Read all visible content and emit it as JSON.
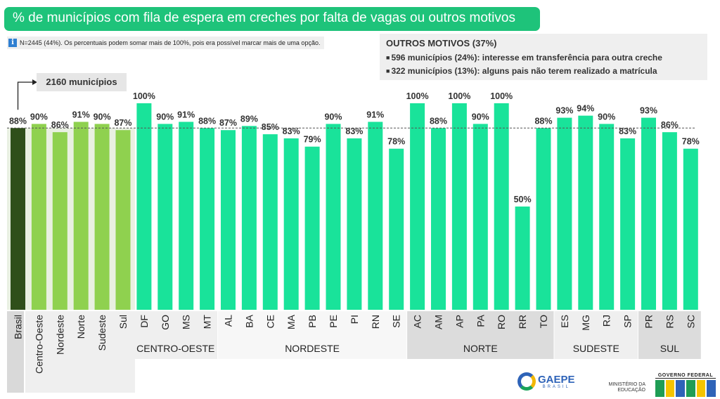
{
  "title": "% de municípios com fila de espera em creches por falta de vagas ou outros motivos",
  "note": "N=2445 (44%). Os percentuais podem somar mais de 100%, pois era possível marcar mais de uma opção.",
  "other_reasons": {
    "title": "OUTROS MOTIVOS (37%)",
    "items": [
      "596 municípios (24%): interesse em transferência para outra creche",
      "322 municípios (13%): alguns pais não terem realizado a matrícula"
    ]
  },
  "callout": "2160 municípios",
  "logos": {
    "gaepe_name": "GAEPE",
    "gaepe_sub": "BRASIL",
    "ministry": "MINISTÉRIO DA EDUCAÇÃO",
    "government": "GOVERNO FEDERAL"
  },
  "colors": {
    "title_bg": "#1ec37a",
    "brasil": "#2f4f1a",
    "region": "#8fd14f",
    "state": "#19e39a",
    "reference_area": "#e9f0e2"
  },
  "chart_data": {
    "type": "bar",
    "title": "% de municípios com fila de espera em creches por falta de vagas ou outros motivos",
    "xlabel": "",
    "ylabel": "",
    "ylim": [
      0,
      100
    ],
    "reference_line": 88,
    "bars": [
      {
        "label": "Brasil",
        "value": 88,
        "kind": "brasil"
      },
      {
        "label": "Centro-Oeste",
        "value": 90,
        "kind": "region"
      },
      {
        "label": "Nordeste",
        "value": 86,
        "kind": "region"
      },
      {
        "label": "Norte",
        "value": 91,
        "kind": "region"
      },
      {
        "label": "Sudeste",
        "value": 90,
        "kind": "region"
      },
      {
        "label": "Sul",
        "value": 87,
        "kind": "region"
      },
      {
        "label": "DF",
        "value": 100,
        "kind": "state"
      },
      {
        "label": "GO",
        "value": 90,
        "kind": "state"
      },
      {
        "label": "MS",
        "value": 91,
        "kind": "state"
      },
      {
        "label": "MT",
        "value": 88,
        "kind": "state"
      },
      {
        "label": "AL",
        "value": 87,
        "kind": "state"
      },
      {
        "label": "BA",
        "value": 89,
        "kind": "state"
      },
      {
        "label": "CE",
        "value": 85,
        "kind": "state"
      },
      {
        "label": "MA",
        "value": 83,
        "kind": "state"
      },
      {
        "label": "PB",
        "value": 79,
        "kind": "state"
      },
      {
        "label": "PE",
        "value": 90,
        "kind": "state"
      },
      {
        "label": "PI",
        "value": 83,
        "kind": "state"
      },
      {
        "label": "RN",
        "value": 91,
        "kind": "state"
      },
      {
        "label": "SE",
        "value": 78,
        "kind": "state"
      },
      {
        "label": "AC",
        "value": 100,
        "kind": "state"
      },
      {
        "label": "AM",
        "value": 88,
        "kind": "state"
      },
      {
        "label": "AP",
        "value": 100,
        "kind": "state"
      },
      {
        "label": "PA",
        "value": 90,
        "kind": "state"
      },
      {
        "label": "RO",
        "value": 100,
        "kind": "state"
      },
      {
        "label": "RR",
        "value": 50,
        "kind": "state"
      },
      {
        "label": "TO",
        "value": 88,
        "kind": "state"
      },
      {
        "label": "ES",
        "value": 93,
        "kind": "state"
      },
      {
        "label": "MG",
        "value": 94,
        "kind": "state"
      },
      {
        "label": "RJ",
        "value": 90,
        "kind": "state"
      },
      {
        "label": "SP",
        "value": 83,
        "kind": "state"
      },
      {
        "label": "PR",
        "value": 93,
        "kind": "state"
      },
      {
        "label": "RS",
        "value": 86,
        "kind": "state"
      },
      {
        "label": "SC",
        "value": 78,
        "kind": "state"
      }
    ],
    "groups": [
      {
        "label": "CENTRO-OESTE",
        "first": 6,
        "last": 9
      },
      {
        "label": "NORDESTE",
        "first": 10,
        "last": 18
      },
      {
        "label": "NORTE",
        "first": 19,
        "last": 25
      },
      {
        "label": "SUDESTE",
        "first": 26,
        "last": 29
      },
      {
        "label": "SUL",
        "first": 30,
        "last": 32
      }
    ]
  }
}
